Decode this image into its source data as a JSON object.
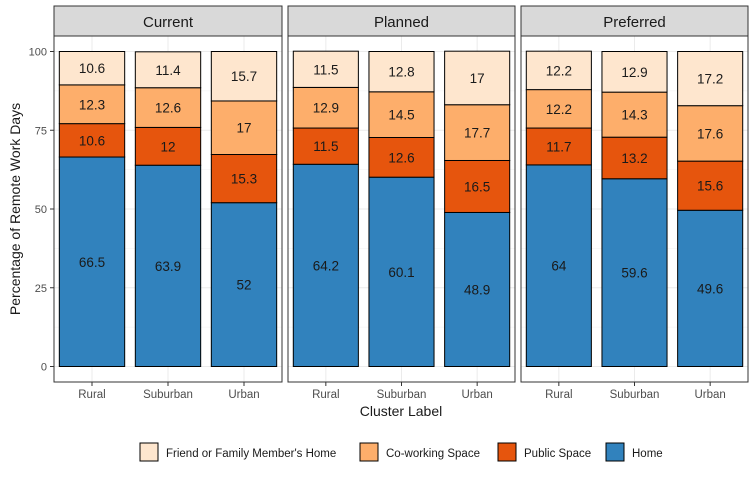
{
  "chart_data": {
    "type": "bar",
    "stacked": true,
    "facet_by": "period",
    "xlabel": "Cluster Label",
    "ylabel": "Percentage of Remote Work Days",
    "ylim": [
      0,
      100
    ],
    "yticks": [
      0,
      25,
      50,
      75,
      100
    ],
    "grid": true,
    "legend_position": "bottom",
    "categories": [
      "Rural",
      "Suburban",
      "Urban"
    ],
    "series": [
      {
        "name": "Home",
        "color": "#3182bd"
      },
      {
        "name": "Public Space",
        "color": "#e6550d"
      },
      {
        "name": "Co-working Space",
        "color": "#fdae6b"
      },
      {
        "name": "Friend or Family Member's Home",
        "color": "#fee6ce"
      }
    ],
    "legend_order": [
      "Friend or Family Member's Home",
      "Co-working Space",
      "Public Space",
      "Home"
    ],
    "panels": [
      {
        "title": "Current",
        "values": {
          "Home": [
            66.5,
            63.9,
            52
          ],
          "Public Space": [
            10.6,
            12,
            15.3
          ],
          "Co-working Space": [
            12.3,
            12.6,
            17
          ],
          "Friend or Family Member's Home": [
            10.6,
            11.4,
            15.7
          ]
        }
      },
      {
        "title": "Planned",
        "values": {
          "Home": [
            64.2,
            60.1,
            48.9
          ],
          "Public Space": [
            11.5,
            12.6,
            16.5
          ],
          "Co-working Space": [
            12.9,
            14.5,
            17.7
          ],
          "Friend or Family Member's Home": [
            11.5,
            12.8,
            17
          ]
        }
      },
      {
        "title": "Preferred",
        "values": {
          "Home": [
            64,
            59.6,
            49.6
          ],
          "Public Space": [
            11.7,
            13.2,
            15.6
          ],
          "Co-working Space": [
            12.2,
            14.3,
            17.6
          ],
          "Friend or Family Member's Home": [
            12.2,
            12.9,
            17.2
          ]
        }
      }
    ]
  }
}
